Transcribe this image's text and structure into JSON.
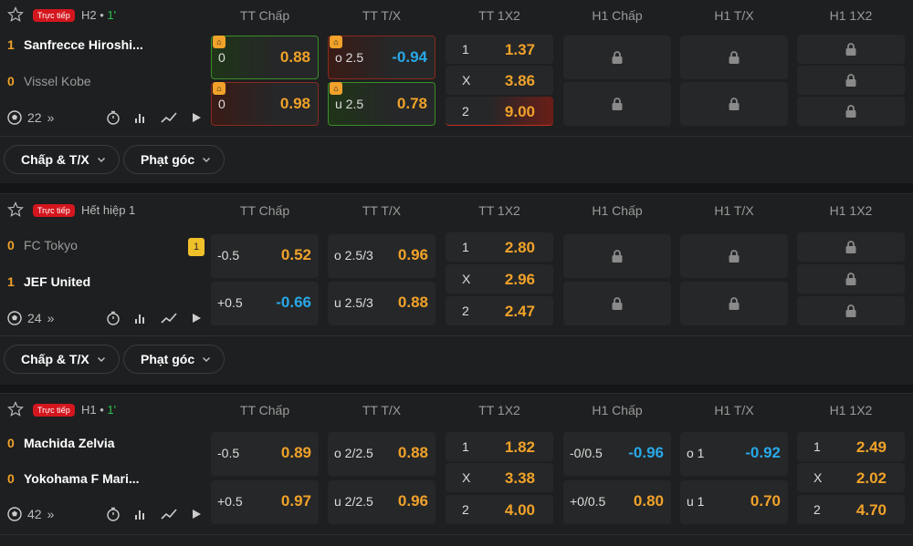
{
  "columns": [
    "TT Chấp",
    "TT T/X",
    "TT 1X2",
    "H1 Chấp",
    "H1 T/X",
    "H1 1X2"
  ],
  "live_label": "Trực tiếp",
  "dropdowns": {
    "handicap": "Chấp & T/X",
    "corners": "Phạt góc"
  },
  "matches": [
    {
      "status": "H2",
      "minute": "1'",
      "home": {
        "score": "1",
        "name": "Sanfrecce Hiroshi..."
      },
      "away": {
        "score": "0",
        "name": "Vissel Kobe"
      },
      "markets": "22",
      "chap": [
        {
          "l": "0",
          "r": "0.88"
        },
        {
          "l": "0",
          "r": "0.98"
        }
      ],
      "tx": [
        {
          "l": "o 2.5",
          "r": "-0.94"
        },
        {
          "l": "u 2.5",
          "r": "0.78"
        }
      ],
      "x12": [
        {
          "l": "1",
          "r": "1.37"
        },
        {
          "l": "X",
          "r": "3.86"
        },
        {
          "l": "2",
          "r": "9.00"
        }
      ]
    },
    {
      "status": "Hết hiệp 1",
      "minute": "",
      "home": {
        "score": "0",
        "name": "FC Tokyo"
      },
      "away": {
        "score": "1",
        "name": "JEF United"
      },
      "markets": "24",
      "card": "1",
      "chap": [
        {
          "l": "-0.5",
          "r": "0.52"
        },
        {
          "l": "+0.5",
          "r": "-0.66"
        }
      ],
      "tx": [
        {
          "l": "o 2.5/3",
          "r": "0.96"
        },
        {
          "l": "u 2.5/3",
          "r": "0.88"
        }
      ],
      "x12": [
        {
          "l": "1",
          "r": "2.80"
        },
        {
          "l": "X",
          "r": "2.96"
        },
        {
          "l": "2",
          "r": "2.47"
        }
      ]
    },
    {
      "status": "H1",
      "minute": "1'",
      "home": {
        "score": "0",
        "name": "Machida Zelvia"
      },
      "away": {
        "score": "0",
        "name": "Yokohama F Mari..."
      },
      "markets": "42",
      "chap": [
        {
          "l": "-0.5",
          "r": "0.89"
        },
        {
          "l": "+0.5",
          "r": "0.97"
        }
      ],
      "tx": [
        {
          "l": "o 2/2.5",
          "r": "0.88"
        },
        {
          "l": "u 2/2.5",
          "r": "0.96"
        }
      ],
      "x12": [
        {
          "l": "1",
          "r": "1.82"
        },
        {
          "l": "X",
          "r": "3.38"
        },
        {
          "l": "2",
          "r": "4.00"
        }
      ],
      "h1chap": [
        {
          "l": "-0/0.5",
          "r": "-0.96"
        },
        {
          "l": "+0/0.5",
          "r": "0.80"
        }
      ],
      "h1tx": [
        {
          "l": "o 1",
          "r": "-0.92"
        },
        {
          "l": "u 1",
          "r": "0.70"
        }
      ],
      "h1x12": [
        {
          "l": "1",
          "r": "2.49"
        },
        {
          "l": "X",
          "r": "2.02"
        },
        {
          "l": "2",
          "r": "4.70"
        }
      ]
    }
  ],
  "colors": {
    "accent": "#f0a22a",
    "negative": "#29a8e8",
    "live": "#d4161e",
    "minute": "#27c24c"
  }
}
